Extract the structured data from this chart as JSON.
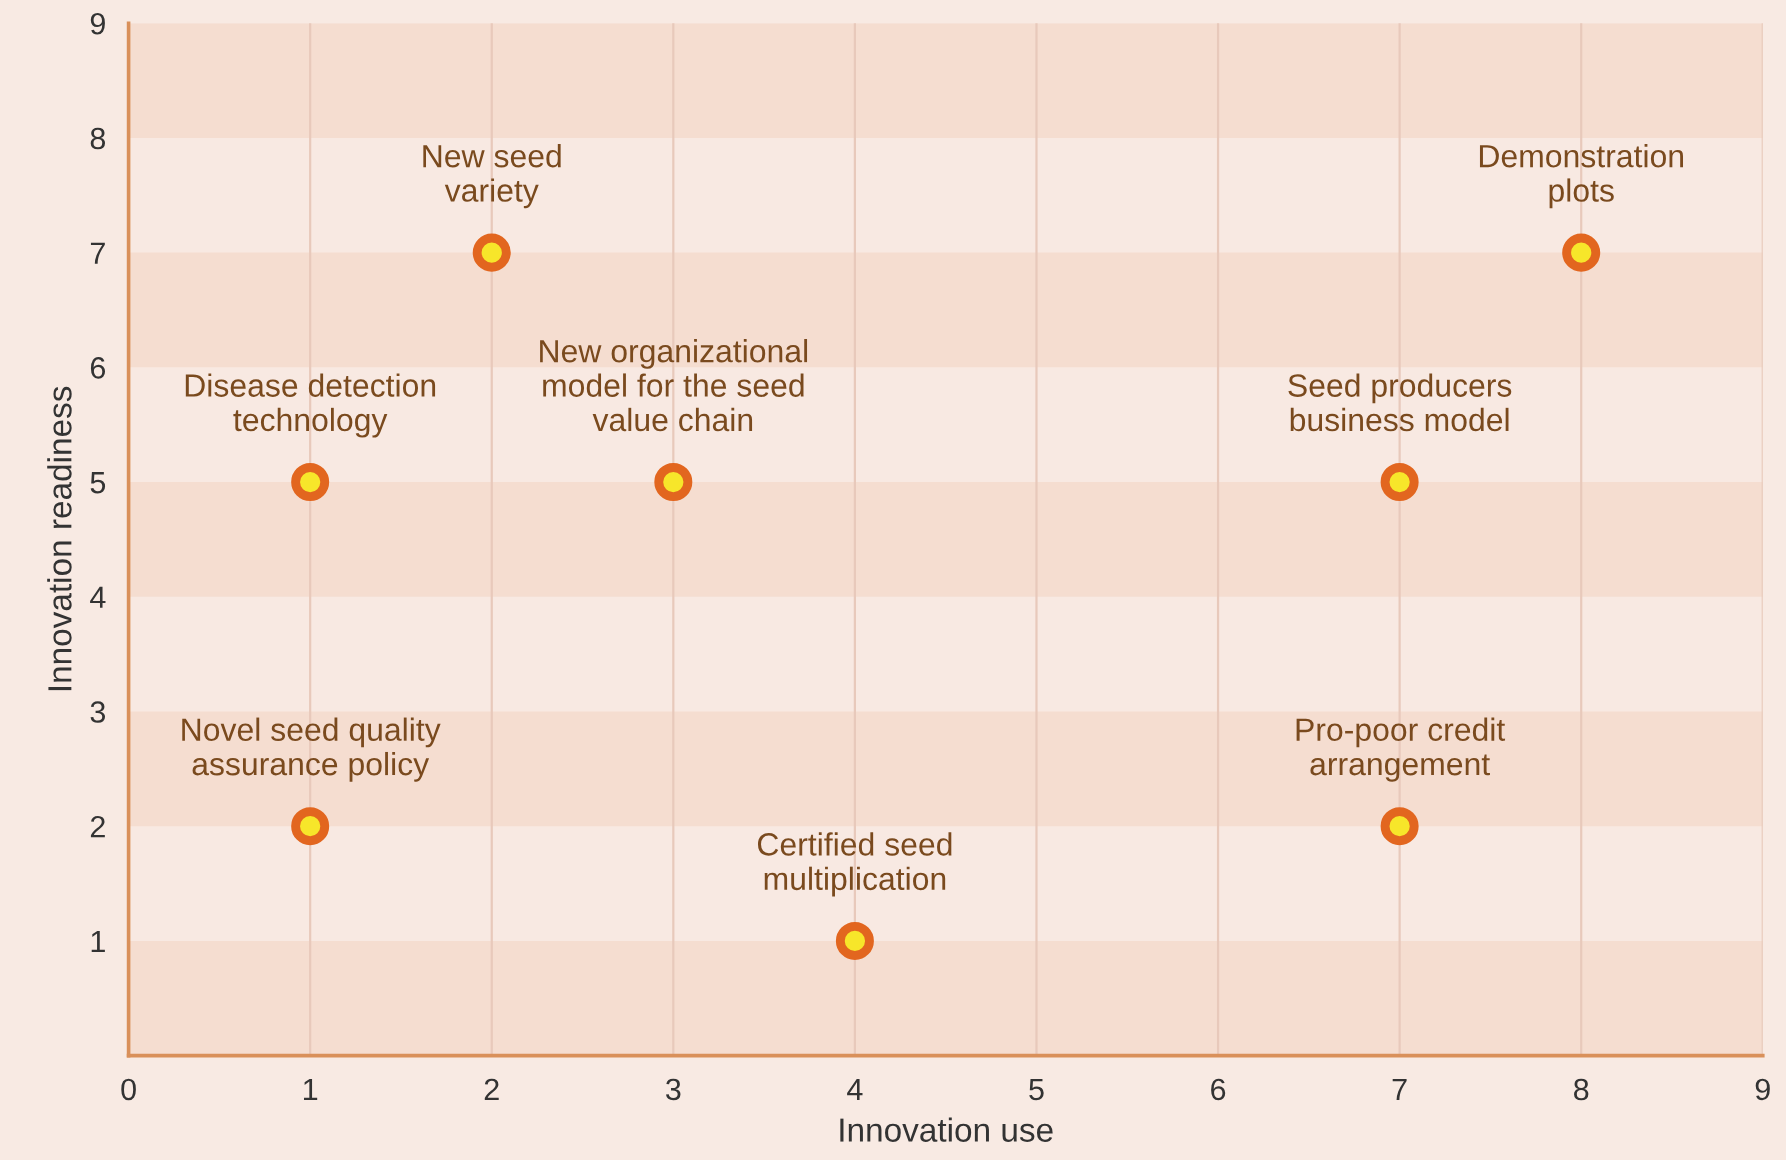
{
  "chart_data": {
    "type": "scatter",
    "xlabel": "Innovation use",
    "ylabel": "Innovation readiness",
    "series": [
      {
        "color": "#e2661f",
        "x": [
          1,
          2,
          3,
          8,
          7,
          1,
          4,
          7
        ],
        "values": [
          5,
          7,
          5,
          7,
          5,
          2,
          1,
          2
        ]
      }
    ],
    "marker": "circle",
    "xlim": [
      0,
      9
    ],
    "ylim": [
      0,
      9
    ],
    "xticks": [
      0,
      1,
      2,
      3,
      4,
      5,
      6,
      7,
      8,
      9
    ],
    "yticks": [
      1,
      2,
      3,
      4,
      5,
      6,
      7,
      8,
      9
    ],
    "grid": "x",
    "bands": [
      {
        "axis": "y",
        "from": 0,
        "to": 1,
        "color": "#f5ddd0"
      },
      {
        "axis": "y",
        "from": 2,
        "to": 3,
        "color": "#f5ddd0"
      },
      {
        "axis": "y",
        "from": 4,
        "to": 5,
        "color": "#f5ddd0"
      },
      {
        "axis": "y",
        "from": 6,
        "to": 7,
        "color": "#f5ddd0"
      },
      {
        "axis": "y",
        "from": 8,
        "to": 9,
        "color": "#f5ddd0"
      }
    ],
    "annotations": [
      {
        "text": "Disease detection\ntechnology",
        "x": 1,
        "y": 5
      },
      {
        "text": "New seed\nvariety",
        "x": 2,
        "y": 7
      },
      {
        "text": "New organizational\nmodel for the seed\nvalue chain",
        "x": 3,
        "y": 5
      },
      {
        "text": "Demonstration\nplots",
        "x": 8,
        "y": 7
      },
      {
        "text": "Seed producers\nbusiness model",
        "x": 7,
        "y": 5
      },
      {
        "text": "Novel seed quality\nassurance policy",
        "x": 1,
        "y": 2
      },
      {
        "text": "Certified seed\nmultiplication",
        "x": 4,
        "y": 1
      },
      {
        "text": "Pro-poor credit\narrangement",
        "x": 7,
        "y": 2
      }
    ]
  }
}
